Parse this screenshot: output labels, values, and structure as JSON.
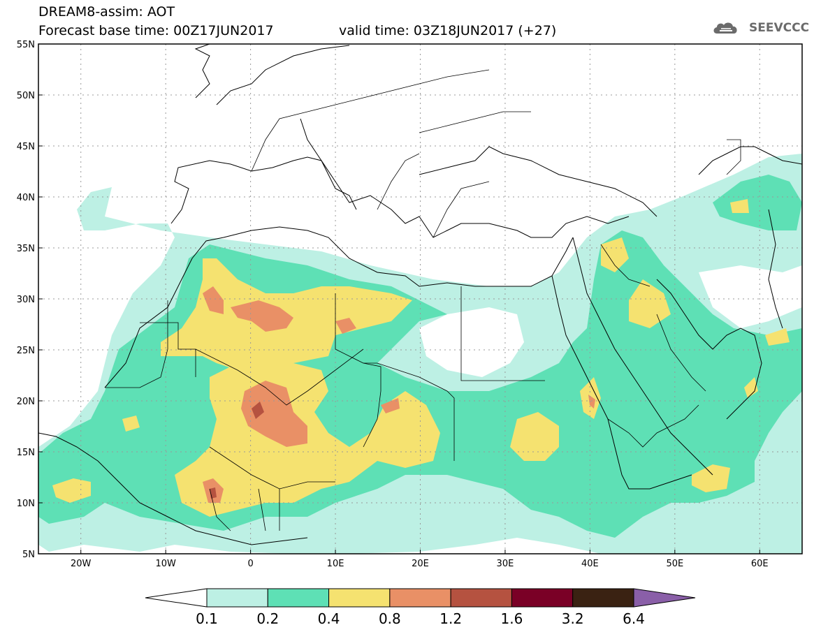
{
  "title": {
    "line1": "DREAM8-assim: AOT",
    "line2": "Forecast base time: 00Z17JUN2017",
    "valid": "valid time: 03Z18JUN2017 (+27)"
  },
  "logo": {
    "text": "SEEVCCC",
    "icon": "cloud-icon"
  },
  "axes": {
    "lon_ticks": [
      {
        "value": -20,
        "label": "20W"
      },
      {
        "value": -10,
        "label": "10W"
      },
      {
        "value": 0,
        "label": "0"
      },
      {
        "value": 10,
        "label": "10E"
      },
      {
        "value": 20,
        "label": "20E"
      },
      {
        "value": 30,
        "label": "30E"
      },
      {
        "value": 40,
        "label": "40E"
      },
      {
        "value": 50,
        "label": "50E"
      },
      {
        "value": 60,
        "label": "60E"
      }
    ],
    "lat_ticks": [
      {
        "value": 55,
        "label": "55N"
      },
      {
        "value": 50,
        "label": "50N"
      },
      {
        "value": 45,
        "label": "45N"
      },
      {
        "value": 40,
        "label": "40N"
      },
      {
        "value": 35,
        "label": "35N"
      },
      {
        "value": 30,
        "label": "30N"
      },
      {
        "value": 25,
        "label": "25N"
      },
      {
        "value": 20,
        "label": "20N"
      },
      {
        "value": 15,
        "label": "15N"
      },
      {
        "value": 10,
        "label": "10N"
      },
      {
        "value": 5,
        "label": "5N"
      }
    ],
    "lon_range": [
      -25,
      65
    ],
    "lat_range": [
      5,
      55
    ],
    "grid": true
  },
  "colorbar": {
    "levels": [
      "0.1",
      "0.2",
      "0.4",
      "0.8",
      "1.2",
      "1.6",
      "3.2",
      "6.4"
    ],
    "colors": [
      "#ffffff",
      "#bdf0e4",
      "#5ee0b5",
      "#f5e270",
      "#e99066",
      "#b55240",
      "#7a0026",
      "#3a2212",
      "#8a5fa8"
    ]
  },
  "fill": {
    "c1": "#bdf0e4",
    "c2": "#5ee0b5",
    "c3": "#f5e270",
    "c4": "#e99066",
    "c5": "#b55240"
  }
}
